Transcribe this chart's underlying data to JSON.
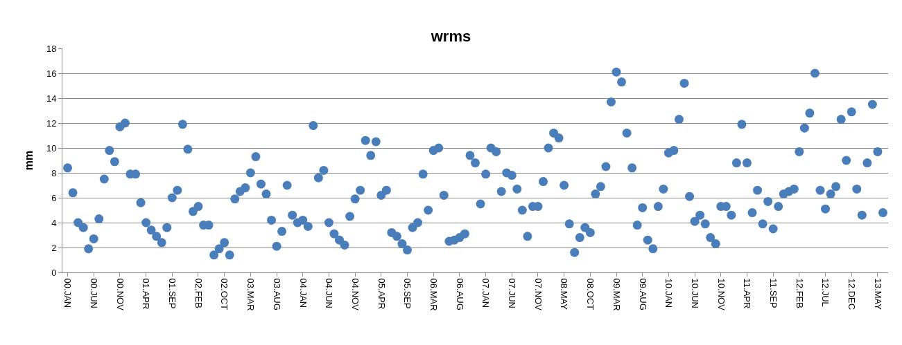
{
  "chart_data": {
    "type": "scatter",
    "title": "wrms",
    "ylabel": "mm",
    "categories": [
      "00.JAN",
      null,
      null,
      null,
      null,
      "00.JUN",
      null,
      null,
      null,
      null,
      "00.NOV",
      null,
      null,
      null,
      null,
      "01.APR",
      null,
      null,
      null,
      null,
      "01.SEP",
      null,
      null,
      null,
      null,
      "02.FEB",
      null,
      null,
      null,
      null,
      "02.OCT",
      null,
      null,
      null,
      null,
      "03.MAR",
      null,
      null,
      null,
      null,
      "03.AUG",
      null,
      null,
      null,
      null,
      "04.JAN",
      null,
      null,
      null,
      null,
      "04.JUN",
      null,
      null,
      null,
      null,
      "04.NOV",
      null,
      null,
      null,
      null,
      "05.APR",
      null,
      null,
      null,
      null,
      "05.SEP",
      null,
      null,
      null,
      null,
      "06.MAR",
      null,
      null,
      null,
      null,
      "06.AUG",
      null,
      null,
      null,
      null,
      "07.JAN",
      null,
      null,
      null,
      null,
      "07.JUN",
      null,
      null,
      null,
      null,
      "07.NOV",
      null,
      null,
      null,
      null,
      "08.MAY",
      null,
      null,
      null,
      null,
      "08.OCT",
      null,
      null,
      null,
      null,
      "09.MAR",
      null,
      null,
      null,
      null,
      "09.AUG",
      null,
      null,
      null,
      null,
      "10.JAN",
      null,
      null,
      null,
      null,
      "10.JUN",
      null,
      null,
      null,
      null,
      "10.NOV",
      null,
      null,
      null,
      null,
      "11.APR",
      null,
      null,
      null,
      null,
      "11.SEP",
      null,
      null,
      null,
      null,
      "12.FEB",
      null,
      null,
      null,
      null,
      "12.JUL",
      null,
      null,
      null,
      null,
      "12.DEC",
      null,
      null,
      null,
      null,
      "13.MAY",
      null
    ],
    "series": [
      {
        "color": "#4a7ebb",
        "values": [
          8.4,
          6.4,
          4.0,
          3.6,
          1.9,
          2.7,
          4.3,
          7.5,
          9.8,
          8.9,
          11.7,
          12.0,
          7.9,
          7.9,
          5.6,
          4.0,
          3.4,
          2.9,
          2.4,
          3.6,
          6.0,
          6.6,
          11.9,
          9.9,
          4.9,
          5.3,
          3.8,
          3.8,
          1.4,
          1.9,
          2.4,
          1.4,
          5.9,
          6.5,
          6.8,
          8.0,
          9.3,
          7.1,
          6.3,
          4.2,
          2.1,
          3.3,
          7.0,
          4.6,
          4.0,
          4.2,
          3.7,
          11.8,
          7.6,
          8.2,
          4.0,
          3.1,
          2.6,
          2.2,
          4.5,
          5.9,
          6.6,
          10.6,
          9.4,
          10.5,
          6.2,
          6.6,
          3.2,
          2.9,
          2.3,
          1.8,
          3.6,
          4.0,
          7.9,
          5.0,
          9.8,
          10.0,
          6.2,
          2.5,
          2.6,
          2.8,
          3.1,
          9.4,
          8.8,
          5.5,
          7.9,
          10.0,
          9.7,
          6.5,
          8.0,
          7.8,
          6.7,
          5.0,
          2.9,
          5.3,
          5.3,
          7.3,
          10.0,
          11.2,
          10.8,
          7.0,
          3.9,
          1.6,
          2.8,
          3.6,
          3.2,
          6.3,
          6.9,
          8.5,
          13.7,
          16.1,
          15.3,
          11.2,
          8.4,
          3.8,
          5.2,
          2.6,
          1.9,
          5.3,
          6.7,
          9.6,
          9.8,
          12.3,
          15.2,
          6.1,
          4.1,
          4.6,
          3.9,
          2.8,
          2.3,
          5.3,
          5.3,
          4.6,
          8.8,
          11.9,
          8.8,
          4.8,
          6.6,
          3.9,
          5.7,
          3.5,
          5.3,
          6.3,
          6.5,
          6.7,
          9.7,
          11.6,
          12.8,
          16.0,
          6.6,
          5.1,
          6.3,
          6.9,
          12.3,
          9.0,
          12.9,
          6.7,
          4.6,
          8.8,
          13.5,
          9.7,
          4.8
        ]
      }
    ],
    "ylim": [
      0,
      18
    ],
    "yticks": [
      0,
      2,
      4,
      6,
      8,
      10,
      12,
      14,
      16,
      18
    ],
    "grid": "y",
    "legend": false,
    "marker": "circle"
  }
}
